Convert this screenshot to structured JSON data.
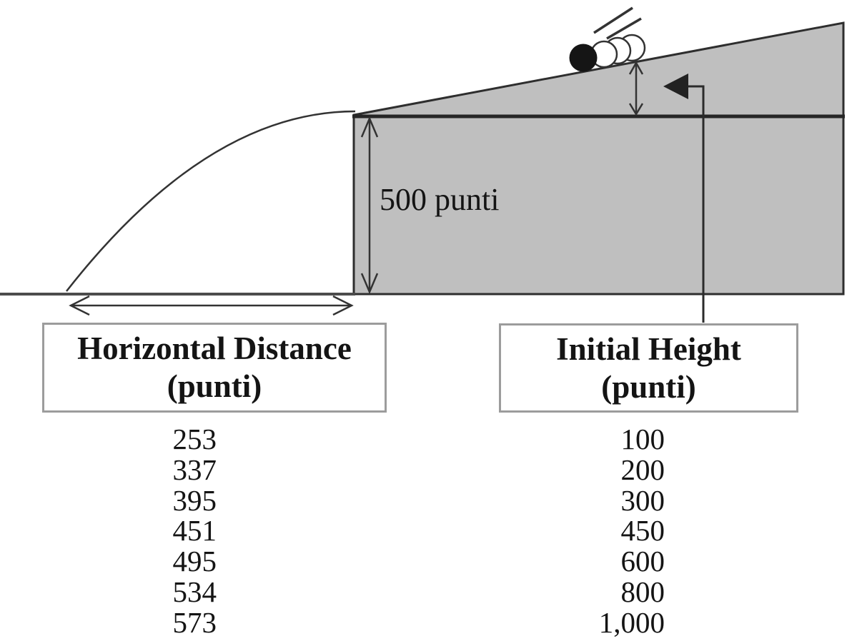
{
  "diagram": {
    "cliff_height_label": "500 punti",
    "colors": {
      "terrain": "#bfbfbf",
      "line_dark": "#2e2e2e",
      "ground": "#4c4c4c",
      "box_border": "#9c9c9c",
      "ink": "#141414"
    }
  },
  "table": {
    "columns": [
      {
        "id": "horizontal_distance",
        "header": [
          "Horizontal Distance",
          "(punti)"
        ],
        "values": [
          "253",
          "337",
          "395",
          "451",
          "495",
          "534",
          "573"
        ]
      },
      {
        "id": "initial_height",
        "header": [
          "Initial Height",
          "(punti)"
        ],
        "values": [
          "100",
          "200",
          "300",
          "450",
          "600",
          "800",
          "1,000"
        ]
      }
    ]
  },
  "chart_data": {
    "type": "table",
    "columns": [
      "Horizontal Distance (punti)",
      "Initial Height (punti)"
    ],
    "rows": [
      [
        253,
        100
      ],
      [
        337,
        200
      ],
      [
        395,
        300
      ],
      [
        451,
        450
      ],
      [
        495,
        600
      ],
      [
        534,
        800
      ],
      [
        573,
        1000
      ]
    ],
    "annotations": [
      "500 punti"
    ]
  }
}
